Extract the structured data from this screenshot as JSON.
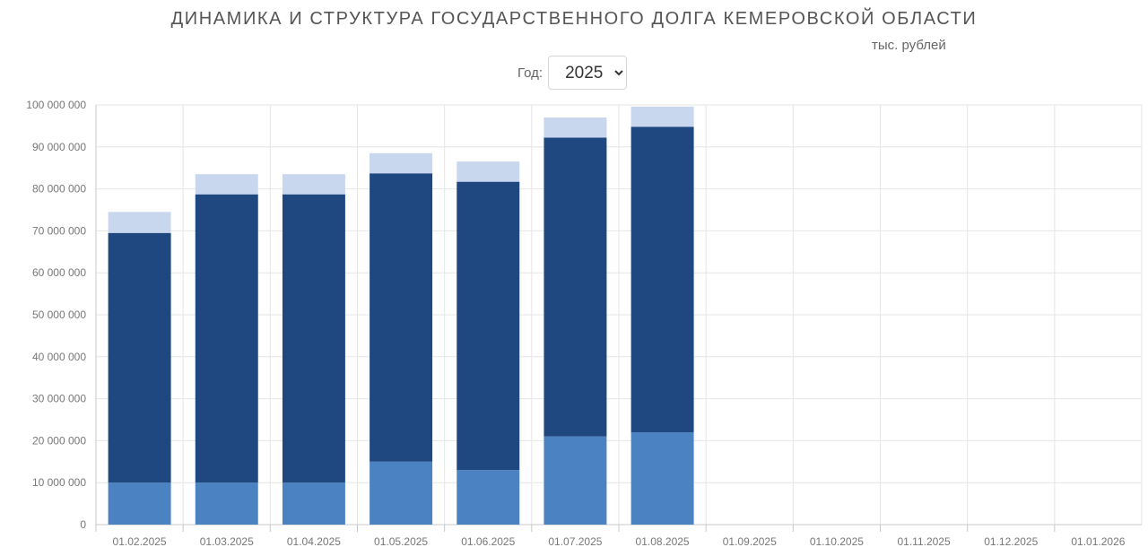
{
  "header": {
    "title": "ДИНАМИКА И СТРУКТУРА ГОСУДАРСТВЕННОГО ДОЛГА КЕМЕРОВСКОЙ ОБЛАСТИ",
    "unit": "тыс. рублей"
  },
  "filter": {
    "year_label": "Год:",
    "year_value": "2025",
    "year_options": [
      "2025"
    ]
  },
  "colors": {
    "series_bottom": "#4b83c2",
    "series_middle": "#1f4780",
    "series_top": "#c8d6ee",
    "grid": "#e6e6e6",
    "axis": "#c8c8c8"
  },
  "chart_data": {
    "type": "bar",
    "stacked": true,
    "title": "ДИНАМИКА И СТРУКТУРА ГОСУДАРСТВЕННОГО ДОЛГА КЕМЕРОВСКОЙ ОБЛАСТИ",
    "ylabel": "тыс. рублей",
    "ylim": [
      0,
      100000000
    ],
    "y_ticks": [
      "0",
      "10 000 000",
      "20 000 000",
      "30 000 000",
      "40 000 000",
      "50 000 000",
      "60 000 000",
      "70 000 000",
      "80 000 000",
      "90 000 000",
      "100 000 000"
    ],
    "grid": true,
    "legend": "none",
    "categories": [
      "01.02.2025",
      "01.03.2025",
      "01.04.2025",
      "01.05.2025",
      "01.06.2025",
      "01.07.2025",
      "01.08.2025",
      "01.09.2025",
      "01.10.2025",
      "01.11.2025",
      "01.12.2025",
      "01.01.2026"
    ],
    "series": [
      {
        "values": [
          10000000,
          10000000,
          10000000,
          15000000,
          13000000,
          21000000,
          22000000,
          null,
          null,
          null,
          null,
          null
        ]
      },
      {
        "values": [
          59500000,
          68700000,
          68700000,
          68700000,
          68700000,
          71200000,
          72800000,
          null,
          null,
          null,
          null,
          null
        ]
      },
      {
        "values": [
          5000000,
          4800000,
          4800000,
          4800000,
          4800000,
          4800000,
          4800000,
          null,
          null,
          null,
          null,
          null
        ]
      }
    ]
  }
}
